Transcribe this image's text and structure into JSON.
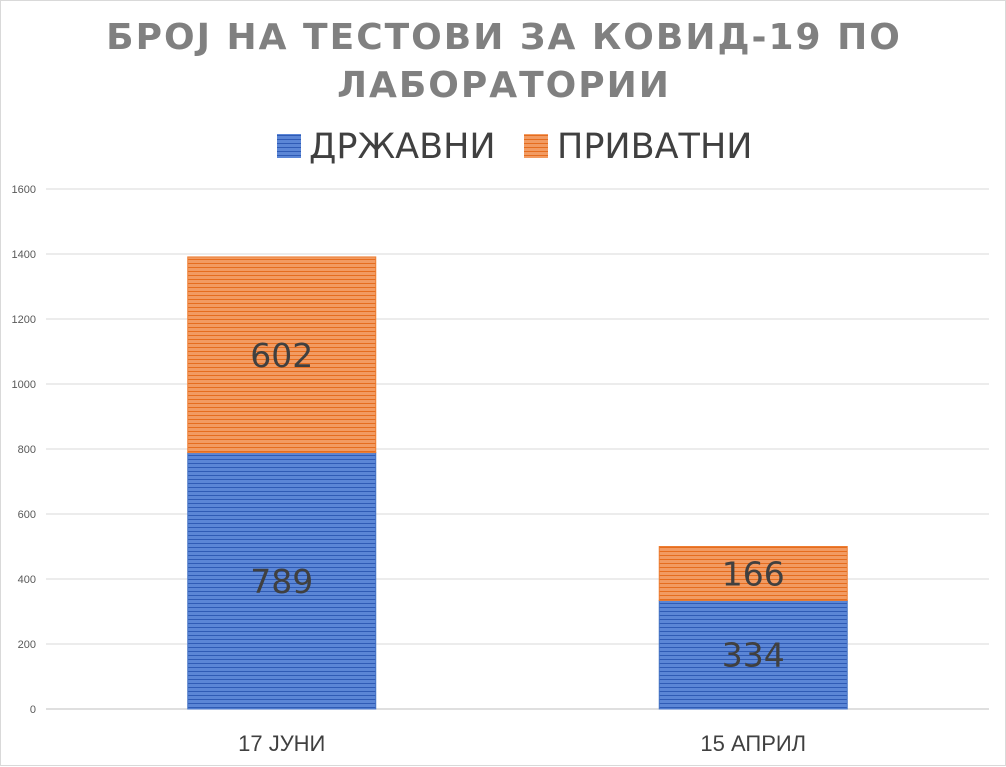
{
  "chart_data": {
    "type": "bar",
    "stacked": true,
    "title_lines": [
      "БРОЈ НА ТЕСТОВИ ЗА КОВИД-19 ПО",
      "ЛАБОРАТОРИИ"
    ],
    "categories": [
      "17 ЈУНИ",
      "15 АПРИЛ"
    ],
    "series": [
      {
        "name": "ДРЖАВНИ",
        "values": [
          789,
          334
        ],
        "color": "#4472c4"
      },
      {
        "name": "ПРИВАТНИ",
        "values": [
          602,
          166
        ],
        "color": "#ed7d31"
      }
    ],
    "ylim": [
      0,
      1600
    ],
    "yticks": [
      0,
      200,
      400,
      600,
      800,
      1000,
      1200,
      1400,
      1600
    ],
    "grid": true,
    "legend_position": "top"
  }
}
